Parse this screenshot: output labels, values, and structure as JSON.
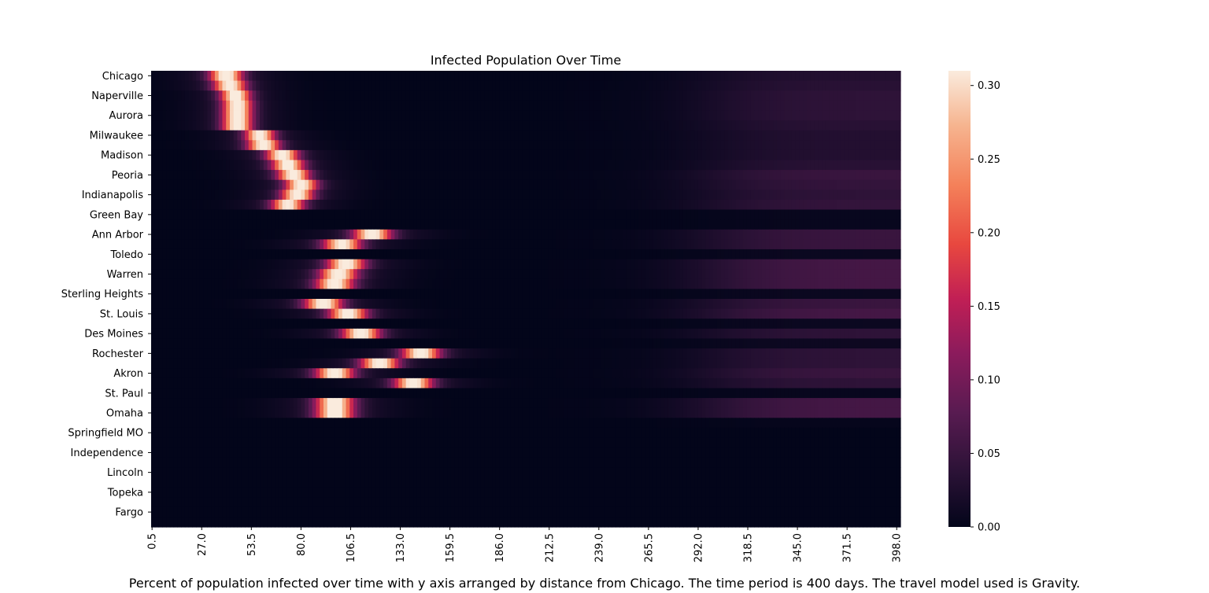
{
  "chart_data": {
    "type": "heatmap",
    "title": "Infected Population Over Time",
    "caption": "Percent of population infected over time with y axis arranged by distance from Chicago. The time period is 400 days. The travel model used is Gravity.",
    "xlabel": "",
    "ylabel": "",
    "x_range": [
      0,
      400
    ],
    "x_ticks": [
      "0.5",
      "27.0",
      "53.5",
      "80.0",
      "106.5",
      "133.0",
      "159.5",
      "186.0",
      "212.5",
      "239.0",
      "265.5",
      "292.0",
      "318.5",
      "345.0",
      "371.5",
      "398.0"
    ],
    "x_tick_values": [
      0.5,
      27.0,
      53.5,
      80.0,
      106.5,
      133.0,
      159.5,
      186.0,
      212.5,
      239.0,
      265.5,
      292.0,
      318.5,
      345.0,
      371.5,
      398.0
    ],
    "y_tick_labels": [
      "Chicago",
      "Naperville",
      "Aurora",
      "Milwaukee",
      "Madison",
      "Peoria",
      "Indianapolis",
      "Green Bay",
      "Ann Arbor",
      "Toledo",
      "Warren",
      "Sterling Heights",
      "St. Louis",
      "Des Moines",
      "Rochester",
      "Akron",
      "St. Paul",
      "Omaha",
      "Springfield MO",
      "Independence",
      "Lincoln",
      "Topeka",
      "Fargo"
    ],
    "n_rows": 46,
    "colorbar": {
      "min": 0.0,
      "max": 0.31,
      "ticks": [
        "0.00",
        "0.05",
        "0.10",
        "0.15",
        "0.20",
        "0.25",
        "0.30"
      ],
      "tick_values": [
        0.0,
        0.05,
        0.1,
        0.15,
        0.2,
        0.25,
        0.3
      ],
      "colormap": "rocket"
    },
    "rows": [
      {
        "peak_day": 40,
        "peak": 0.31,
        "width": 6,
        "tail": 0.03
      },
      {
        "peak_day": 42,
        "peak": 0.3,
        "width": 6,
        "tail": 0.035
      },
      {
        "peak_day": 45,
        "peak": 0.31,
        "width": 5.5,
        "tail": 0.04
      },
      {
        "peak_day": 46,
        "peak": 0.31,
        "width": 5.5,
        "tail": 0.04
      },
      {
        "peak_day": 46,
        "peak": 0.31,
        "width": 5.5,
        "tail": 0.04
      },
      {
        "peak_day": 46,
        "peak": 0.31,
        "width": 5.5,
        "tail": 0.035
      },
      {
        "peak_day": 58,
        "peak": 0.3,
        "width": 5.5,
        "tail": 0.03
      },
      {
        "peak_day": 60,
        "peak": 0.3,
        "width": 6,
        "tail": 0.03
      },
      {
        "peak_day": 70,
        "peak": 0.3,
        "width": 6,
        "tail": 0.03
      },
      {
        "peak_day": 73,
        "peak": 0.3,
        "width": 6,
        "tail": 0.035
      },
      {
        "peak_day": 76,
        "peak": 0.3,
        "width": 6,
        "tail": 0.05
      },
      {
        "peak_day": 80,
        "peak": 0.3,
        "width": 6,
        "tail": 0.045
      },
      {
        "peak_day": 78,
        "peak": 0.3,
        "width": 6,
        "tail": 0.04
      },
      {
        "peak_day": 73,
        "peak": 0.29,
        "width": 6,
        "tail": 0.045
      },
      {
        "peak_day": 0,
        "peak": 0.0,
        "width": 6,
        "tail": 0.005
      },
      {
        "peak_day": 0,
        "peak": 0.0,
        "width": 6,
        "tail": 0.005
      },
      {
        "peak_day": 118,
        "peak": 0.3,
        "width": 7,
        "tail": 0.05
      },
      {
        "peak_day": 102,
        "peak": 0.29,
        "width": 7,
        "tail": 0.05
      },
      {
        "peak_day": 0,
        "peak": 0.0,
        "width": 6,
        "tail": 0.008
      },
      {
        "peak_day": 104,
        "peak": 0.3,
        "width": 7,
        "tail": 0.06
      },
      {
        "peak_day": 100,
        "peak": 0.3,
        "width": 7,
        "tail": 0.06
      },
      {
        "peak_day": 98,
        "peak": 0.3,
        "width": 7,
        "tail": 0.06
      },
      {
        "peak_day": 0,
        "peak": 0.0,
        "width": 6,
        "tail": 0.008
      },
      {
        "peak_day": 92,
        "peak": 0.3,
        "width": 7,
        "tail": 0.05
      },
      {
        "peak_day": 105,
        "peak": 0.3,
        "width": 7,
        "tail": 0.06
      },
      {
        "peak_day": 0,
        "peak": 0.0,
        "width": 6,
        "tail": 0.008
      },
      {
        "peak_day": 112,
        "peak": 0.3,
        "width": 7,
        "tail": 0.04
      },
      {
        "peak_day": 0,
        "peak": 0.0,
        "width": 6,
        "tail": 0.01
      },
      {
        "peak_day": 144,
        "peak": 0.3,
        "width": 7,
        "tail": 0.04
      },
      {
        "peak_day": 122,
        "peak": 0.3,
        "width": 7,
        "tail": 0.04
      },
      {
        "peak_day": 98,
        "peak": 0.3,
        "width": 7,
        "tail": 0.05
      },
      {
        "peak_day": 140,
        "peak": 0.3,
        "width": 7,
        "tail": 0.04
      },
      {
        "peak_day": 0,
        "peak": 0.0,
        "width": 6,
        "tail": 0.005
      },
      {
        "peak_day": 98,
        "peak": 0.31,
        "width": 7,
        "tail": 0.06
      },
      {
        "peak_day": 98,
        "peak": 0.31,
        "width": 7,
        "tail": 0.06
      },
      {
        "peak_day": 0,
        "peak": 0.0,
        "width": 6,
        "tail": 0.003
      },
      {
        "peak_day": 0,
        "peak": 0.0,
        "width": 6,
        "tail": 0.0
      },
      {
        "peak_day": 0,
        "peak": 0.0,
        "width": 6,
        "tail": 0.0
      },
      {
        "peak_day": 0,
        "peak": 0.0,
        "width": 6,
        "tail": 0.0
      },
      {
        "peak_day": 0,
        "peak": 0.0,
        "width": 6,
        "tail": 0.0
      },
      {
        "peak_day": 0,
        "peak": 0.0,
        "width": 6,
        "tail": 0.0
      },
      {
        "peak_day": 0,
        "peak": 0.0,
        "width": 6,
        "tail": 0.0
      },
      {
        "peak_day": 0,
        "peak": 0.0,
        "width": 6,
        "tail": 0.0
      },
      {
        "peak_day": 0,
        "peak": 0.0,
        "width": 6,
        "tail": 0.0
      },
      {
        "peak_day": 0,
        "peak": 0.0,
        "width": 6,
        "tail": 0.0
      },
      {
        "peak_day": 0,
        "peak": 0.0,
        "width": 6,
        "tail": 0.0
      }
    ]
  }
}
